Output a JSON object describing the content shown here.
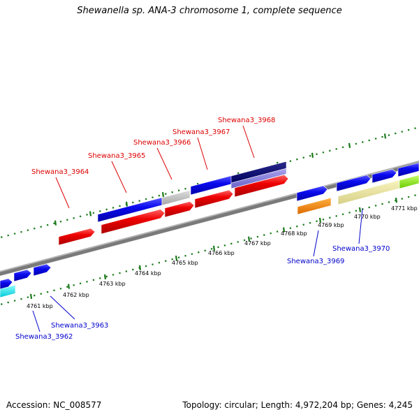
{
  "title": "Shewanella sp. ANA-3 chromosome 1, complete sequence",
  "accession": "Accession: NC_008577",
  "summary": "Topology: circular; Length: 4,972,204 bp; Genes: 4,245",
  "colors": {
    "forward_label": "#dd0000",
    "reverse_label": "#0000cc",
    "tick": "#1a7a1a",
    "backbone": "#777777"
  },
  "tick_labels": [
    "4761 kbp",
    "4762 kbp",
    "4763 kbp",
    "4764 kbp",
    "4765 kbp",
    "4766 kbp",
    "4767 kbp",
    "4768 kbp",
    "4769 kbp",
    "4770 kbp",
    "4771 kbp"
  ],
  "top_gene_labels": [
    "Shewana3_3964",
    "Shewana3_3965",
    "Shewana3_3966",
    "Shewana3_3967",
    "Shewana3_3968"
  ],
  "bottom_gene_labels": [
    "Shewana3_3962",
    "Shewana3_3963",
    "Shewana3_3969",
    "Shewana3_3970"
  ],
  "gene_colors": [
    "red",
    "blue",
    "gray",
    "dark-blue",
    "light-purple",
    "orange",
    "khaki",
    "green",
    "cyan"
  ]
}
